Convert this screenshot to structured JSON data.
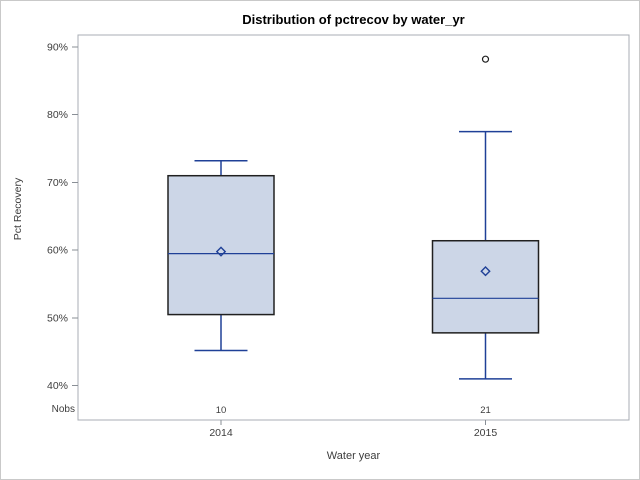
{
  "chart_data": {
    "type": "boxplot",
    "title": "Distribution of pctrecov by water_yr",
    "xlabel": "Water year",
    "ylabel": "Pct Recovery",
    "nobs_label": "Nobs",
    "y_axis": {
      "min": 40,
      "max": 90,
      "tick_step": 10,
      "tick_labels": [
        "40%",
        "50%",
        "60%",
        "70%",
        "80%",
        "90%"
      ],
      "format": "percent",
      "grid": false
    },
    "categories": [
      "2014",
      "2015"
    ],
    "series": [
      {
        "category": "2014",
        "nobs": "10",
        "whisker_low": 45.2,
        "q1": 50.5,
        "median": 59.5,
        "q3": 71.0,
        "whisker_high": 73.2,
        "mean": 59.8,
        "outliers": []
      },
      {
        "category": "2015",
        "nobs": "21",
        "whisker_low": 41.0,
        "q1": 47.8,
        "median": 52.9,
        "q3": 61.4,
        "whisker_high": 77.5,
        "mean": 56.9,
        "outliers": [
          88.2
        ]
      }
    ],
    "colors": {
      "box_fill": "#ccd6e7",
      "box_border": "#202020",
      "line_blue": "#1f4097",
      "outlier_stroke": "#202020",
      "frame": "#a8aeb4",
      "tick": "#898f96",
      "tick_label": "#3d3d3d",
      "title": "#000000",
      "background": "#ffffff",
      "canvas_border": "#c9c9c9"
    },
    "legend": "none"
  }
}
